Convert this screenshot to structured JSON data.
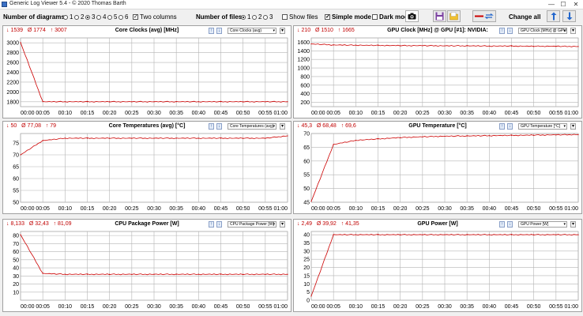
{
  "window": {
    "title": "Generic Log Viewer 5.4 - © 2020 Thomas Barth",
    "minimize": "—",
    "maximize": "☐",
    "close": "✕"
  },
  "toolbar": {
    "num_diagrams_label": "Number of diagrams",
    "diagram_options": [
      "1",
      "2",
      "3",
      "4",
      "5",
      "6"
    ],
    "diagram_selected": "3",
    "two_columns_label": "Two columns",
    "two_columns_checked": true,
    "num_files_label": "Number of files",
    "file_options": [
      "1",
      "2",
      "3"
    ],
    "file_selected": "1",
    "show_files_label": "Show files",
    "simple_mode_label": "Simple mode",
    "dark_mode_label": "Dark mod",
    "change_all_label": "Change all",
    "check_mark": "✓"
  },
  "panels": [
    {
      "stat_min": "↓ 1539",
      "stat_avg": "Ø 1774",
      "stat_max": "↑ 3007",
      "title": "Core Clocks (avg) [MHz]",
      "select": "Core Clocks (avg)"
    },
    {
      "stat_min": "↓ 210",
      "stat_avg": "Ø 1510",
      "stat_max": "↑ 1665",
      "title": "GPU Clock [MHz] @ GPU [#1]: NVIDIA:",
      "select": "GPU Clock [MHz] @ GPU"
    },
    {
      "stat_min": "↓ 50",
      "stat_avg": "Ø 77,08",
      "stat_max": "↑ 79",
      "title": "Core Temperatures (avg) [°C]",
      "select": "Core Temperatures (avg)"
    },
    {
      "stat_min": "↓ 45,3",
      "stat_avg": "Ø 68,48",
      "stat_max": "↑ 69,6",
      "title": "GPU Temperature [°C]",
      "select": "GPU Temperature [°C]"
    },
    {
      "stat_min": "↓ 8,133",
      "stat_avg": "Ø 32,43",
      "stat_max": "↑ 81,09",
      "title": "CPU Package Power [W]",
      "select": "CPU Package Power [W]"
    },
    {
      "stat_min": "↓ 2,49",
      "stat_avg": "Ø 39,92",
      "stat_max": "↑ 41,35",
      "title": "GPU Power [W]",
      "select": "GPU Power [W]"
    }
  ],
  "chart_data": [
    {
      "type": "line",
      "title": "Core Clocks (avg) [MHz]",
      "x": [
        "00:00",
        "00:05",
        "00:10",
        "00:15",
        "00:20",
        "00:25",
        "00:30",
        "00:35",
        "00:40",
        "00:45",
        "00:50",
        "00:55",
        "01:00"
      ],
      "yticks": [
        1800,
        2000,
        2200,
        2400,
        2600,
        2800,
        3000
      ],
      "ylim": [
        1700,
        3100
      ],
      "grid": true,
      "series": [
        {
          "values": [
            3007,
            1800,
            1800,
            1800,
            1800,
            1800,
            1800,
            1800,
            1800,
            1800,
            1800,
            1800,
            1800
          ]
        }
      ]
    },
    {
      "type": "line",
      "title": "GPU Clock [MHz] @ GPU [#1]: NVIDIA:",
      "x": [
        "00:00",
        "00:05",
        "00:10",
        "00:15",
        "00:20",
        "00:25",
        "00:30",
        "00:35",
        "00:40",
        "00:45",
        "00:50",
        "00:55",
        "01:00"
      ],
      "yticks": [
        200,
        400,
        600,
        800,
        1000,
        1200,
        1400,
        1600
      ],
      "ylim": [
        100,
        1700
      ],
      "grid": true,
      "series": [
        {
          "values": [
            1560,
            1535,
            1530,
            1525,
            1520,
            1520,
            1515,
            1515,
            1510,
            1510,
            1505,
            1505,
            1500
          ]
        }
      ]
    },
    {
      "type": "line",
      "title": "Core Temperatures (avg) [°C]",
      "x": [
        "00:00",
        "00:05",
        "00:10",
        "00:15",
        "00:20",
        "00:25",
        "00:30",
        "00:35",
        "00:40",
        "00:45",
        "00:50",
        "00:55",
        "01:00"
      ],
      "yticks": [
        50,
        55,
        60,
        65,
        70,
        75
      ],
      "ylim": [
        50,
        79
      ],
      "grid": true,
      "series": [
        {
          "values": [
            70,
            76,
            77,
            77,
            77,
            77,
            77,
            77,
            77,
            77,
            77,
            77,
            78
          ]
        }
      ]
    },
    {
      "type": "line",
      "title": "GPU Temperature [°C]",
      "x": [
        "00:00",
        "00:05",
        "00:10",
        "00:15",
        "00:20",
        "00:25",
        "00:30",
        "00:35",
        "00:40",
        "00:45",
        "00:50",
        "00:55",
        "01:00"
      ],
      "yticks": [
        45,
        50,
        55,
        60,
        65,
        70
      ],
      "ylim": [
        45,
        70
      ],
      "grid": true,
      "series": [
        {
          "values": [
            45.3,
            66,
            67.5,
            68,
            68.5,
            68.8,
            69,
            69.1,
            69.2,
            69.3,
            69.4,
            69.5,
            69.6
          ]
        }
      ]
    },
    {
      "type": "line",
      "title": "CPU Package Power [W]",
      "x": [
        "00:00",
        "00:05",
        "00:10",
        "00:15",
        "00:20",
        "00:25",
        "00:30",
        "00:35",
        "00:40",
        "00:45",
        "00:50",
        "00:55",
        "01:00"
      ],
      "yticks": [
        10,
        20,
        30,
        40,
        50,
        60,
        70,
        80
      ],
      "ylim": [
        0,
        85
      ],
      "grid": true,
      "series": [
        {
          "values": [
            81,
            33,
            32,
            32,
            32,
            32,
            32,
            32,
            32,
            32,
            32,
            32,
            32
          ]
        }
      ]
    },
    {
      "type": "line",
      "title": "GPU Power [W]",
      "x": [
        "00:00",
        "00:05",
        "00:10",
        "00:15",
        "00:20",
        "00:25",
        "00:30",
        "00:35",
        "00:40",
        "00:45",
        "00:50",
        "00:55",
        "01:00"
      ],
      "yticks": [
        0,
        5,
        10,
        15,
        20,
        25,
        30,
        35,
        40
      ],
      "ylim": [
        0,
        42
      ],
      "grid": true,
      "series": [
        {
          "values": [
            2.49,
            40,
            40,
            40,
            40,
            40,
            40,
            40,
            40,
            40,
            40,
            40,
            40
          ]
        }
      ]
    }
  ],
  "colors": {
    "line": "#cc0000",
    "accent": "#c00000"
  }
}
